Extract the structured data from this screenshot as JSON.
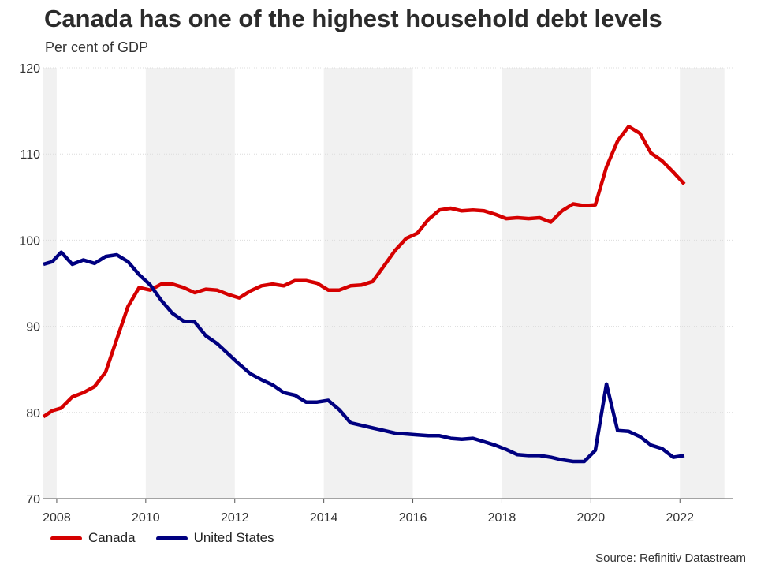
{
  "title": "Canada has one of the highest household debt levels",
  "subtitle": "Per cent of GDP",
  "source": "Source: Refinitiv Datastream",
  "colors": {
    "canada": "#d50000",
    "united_states": "#000080",
    "band": "#f1f1f1",
    "grid": "#dcdcdc"
  },
  "chart_data": {
    "type": "line",
    "xlim": [
      2007.7,
      2023.2
    ],
    "ylim": [
      70,
      120
    ],
    "yticks": [
      70,
      80,
      90,
      100,
      110,
      120
    ],
    "xticks": [
      2008,
      2010,
      2012,
      2014,
      2016,
      2018,
      2020,
      2022
    ],
    "shaded_bands": [
      [
        2007.7,
        2008.0
      ],
      [
        2010.0,
        2012.0
      ],
      [
        2014.0,
        2016.0
      ],
      [
        2018.0,
        2020.0
      ],
      [
        2022.0,
        2023.0
      ]
    ],
    "grid": "horizontal dotted",
    "legend": "bottom-left",
    "series": [
      {
        "name": "Canada",
        "color": "#d50000",
        "x": [
          2007.7,
          2007.9,
          2008.1,
          2008.35,
          2008.6,
          2008.85,
          2009.1,
          2009.35,
          2009.6,
          2009.85,
          2010.1,
          2010.35,
          2010.6,
          2010.85,
          2011.1,
          2011.35,
          2011.6,
          2011.85,
          2012.1,
          2012.35,
          2012.6,
          2012.85,
          2013.1,
          2013.35,
          2013.6,
          2013.85,
          2014.1,
          2014.35,
          2014.6,
          2014.85,
          2015.1,
          2015.35,
          2015.6,
          2015.85,
          2016.1,
          2016.35,
          2016.6,
          2016.85,
          2017.1,
          2017.35,
          2017.6,
          2017.85,
          2018.1,
          2018.35,
          2018.6,
          2018.85,
          2019.1,
          2019.35,
          2019.6,
          2019.85,
          2020.1,
          2020.35,
          2020.6,
          2020.85,
          2021.1,
          2021.35,
          2021.6,
          2021.85,
          2022.1
        ],
        "values": [
          79.5,
          80.2,
          80.5,
          81.8,
          82.3,
          83.0,
          84.7,
          88.5,
          92.3,
          94.5,
          94.2,
          94.9,
          94.9,
          94.5,
          93.9,
          94.3,
          94.2,
          93.7,
          93.3,
          94.1,
          94.7,
          94.9,
          94.7,
          95.3,
          95.3,
          95.0,
          94.2,
          94.2,
          94.7,
          94.8,
          95.2,
          97.0,
          98.8,
          100.2,
          100.8,
          102.4,
          103.5,
          103.7,
          103.4,
          103.5,
          103.4,
          103.0,
          102.5,
          102.6,
          102.5,
          102.6,
          102.1,
          103.4,
          104.2,
          104.0,
          104.1,
          108.5,
          111.5,
          113.2,
          112.4,
          110.1,
          109.2,
          107.9,
          106.5
        ]
      },
      {
        "name": "United States",
        "color": "#000080",
        "x": [
          2007.7,
          2007.9,
          2008.1,
          2008.35,
          2008.6,
          2008.85,
          2009.1,
          2009.35,
          2009.6,
          2009.85,
          2010.1,
          2010.35,
          2010.6,
          2010.85,
          2011.1,
          2011.35,
          2011.6,
          2011.85,
          2012.1,
          2012.35,
          2012.6,
          2012.85,
          2013.1,
          2013.35,
          2013.6,
          2013.85,
          2014.1,
          2014.35,
          2014.6,
          2014.85,
          2015.1,
          2015.35,
          2015.6,
          2015.85,
          2016.1,
          2016.35,
          2016.6,
          2016.85,
          2017.1,
          2017.35,
          2017.6,
          2017.85,
          2018.1,
          2018.35,
          2018.6,
          2018.85,
          2019.1,
          2019.35,
          2019.6,
          2019.85,
          2020.1,
          2020.35,
          2020.6,
          2020.85,
          2021.1,
          2021.35,
          2021.6,
          2021.85,
          2022.1
        ],
        "values": [
          97.2,
          97.5,
          98.6,
          97.2,
          97.7,
          97.3,
          98.1,
          98.3,
          97.5,
          96.0,
          94.8,
          93.0,
          91.5,
          90.6,
          90.5,
          88.9,
          88.0,
          86.8,
          85.6,
          84.5,
          83.8,
          83.2,
          82.3,
          82.0,
          81.2,
          81.2,
          81.4,
          80.3,
          78.8,
          78.5,
          78.2,
          77.9,
          77.6,
          77.5,
          77.4,
          77.3,
          77.3,
          77.0,
          76.9,
          77.0,
          76.6,
          76.2,
          75.7,
          75.1,
          75.0,
          75.0,
          74.8,
          74.5,
          74.3,
          74.3,
          75.6,
          83.3,
          77.9,
          77.8,
          77.2,
          76.2,
          75.8,
          74.8,
          75.0
        ]
      }
    ]
  }
}
